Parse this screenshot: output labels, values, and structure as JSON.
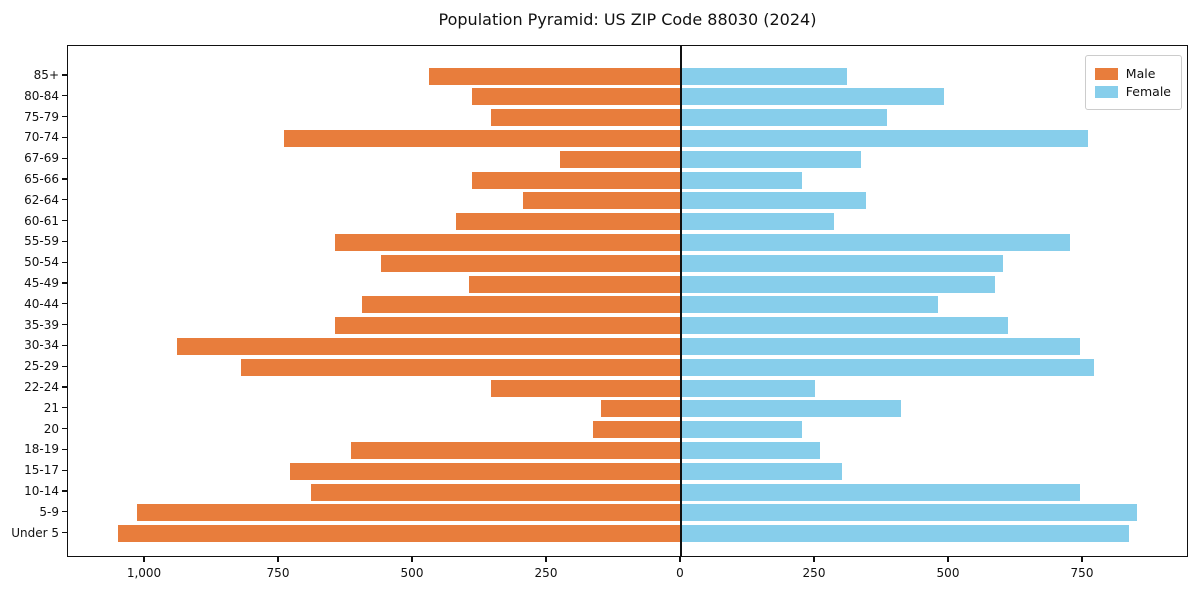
{
  "title": "Population Pyramid: US ZIP Code 88030 (2024)",
  "legend": {
    "male_label": "Male",
    "female_label": "Female"
  },
  "colors": {
    "male": "#E87D3C",
    "female": "#87CEEB",
    "frame": "#111111",
    "legend_border": "#cccccc"
  },
  "chart_data": {
    "type": "bar",
    "subtype": "population-pyramid",
    "orientation": "horizontal",
    "title": "Population Pyramid: US ZIP Code 88030 (2024)",
    "categories_top_to_bottom": [
      "85+",
      "80-84",
      "75-79",
      "70-74",
      "67-69",
      "65-66",
      "62-64",
      "60-61",
      "55-59",
      "50-54",
      "45-49",
      "40-44",
      "35-39",
      "30-34",
      "25-29",
      "22-24",
      "21",
      "20",
      "18-19",
      "15-17",
      "10-14",
      "5-9",
      "Under 5"
    ],
    "series": [
      {
        "name": "Male",
        "side": "left",
        "color": "#E87D3C",
        "values": [
          470,
          390,
          355,
          740,
          225,
          390,
          295,
          420,
          645,
          560,
          395,
          595,
          645,
          940,
          820,
          355,
          150,
          165,
          615,
          730,
          690,
          1015,
          1050
        ]
      },
      {
        "name": "Female",
        "side": "right",
        "color": "#87CEEB",
        "values": [
          310,
          490,
          385,
          760,
          335,
          225,
          345,
          285,
          725,
          600,
          585,
          480,
          610,
          745,
          770,
          250,
          410,
          225,
          260,
          300,
          745,
          850,
          835
        ]
      }
    ],
    "x_axis": {
      "tick_values": [
        -1000,
        -750,
        -500,
        -250,
        0,
        250,
        500,
        750
      ],
      "tick_labels": [
        "1,000",
        "750",
        "500",
        "250",
        "0",
        "250",
        "500",
        "750"
      ],
      "xlim": [
        -1146,
        945
      ]
    },
    "grid": false,
    "legend_position": "upper right",
    "legend_entries": [
      "Male",
      "Female"
    ]
  }
}
